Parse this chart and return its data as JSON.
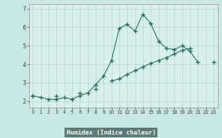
{
  "title": "",
  "xlabel": "Humidex (Indice chaleur)",
  "ylabel": "",
  "background_color": "#c8e8e4",
  "plot_bg_color": "#d8f0ec",
  "grid_color": "#b8d8d4",
  "line_color": "#1a6b5a",
  "xlabel_bg": "#5a7a78",
  "xlabel_color": "#ffffff",
  "x_values": [
    0,
    1,
    2,
    3,
    4,
    5,
    6,
    7,
    8,
    9,
    10,
    11,
    12,
    13,
    14,
    15,
    16,
    17,
    18,
    19,
    20,
    21,
    22,
    23
  ],
  "line1_y": [
    2.3,
    2.2,
    2.1,
    2.1,
    2.2,
    2.1,
    2.3,
    2.45,
    2.9,
    3.35,
    4.2,
    5.95,
    6.15,
    5.8,
    6.7,
    6.2,
    5.25,
    4.85,
    4.8,
    5.0,
    4.7,
    4.1,
    null,
    null
  ],
  "line2_y": [
    2.3,
    null,
    null,
    2.3,
    null,
    null,
    2.45,
    null,
    2.65,
    null,
    3.1,
    3.2,
    3.45,
    3.65,
    3.85,
    4.05,
    4.2,
    4.35,
    4.55,
    4.75,
    4.85,
    null,
    null,
    4.1
  ],
  "xlim": [
    -0.5,
    23.5
  ],
  "ylim": [
    1.65,
    7.25
  ],
  "yticks": [
    2,
    3,
    4,
    5,
    6,
    7
  ],
  "xticks": [
    0,
    1,
    2,
    3,
    4,
    5,
    6,
    7,
    8,
    9,
    10,
    11,
    12,
    13,
    14,
    15,
    16,
    17,
    18,
    19,
    20,
    21,
    22,
    23
  ]
}
